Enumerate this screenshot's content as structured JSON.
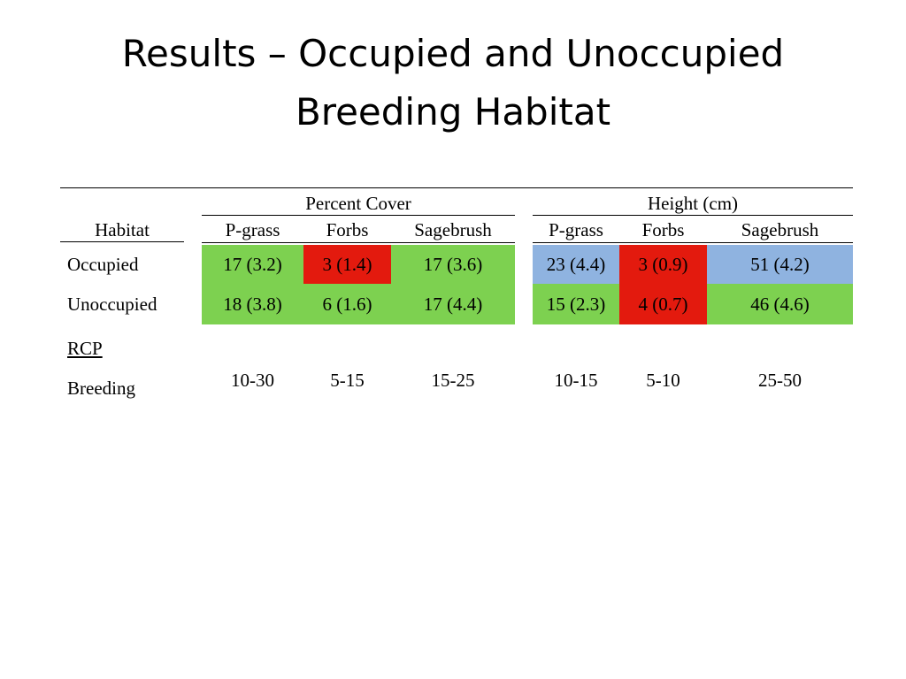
{
  "title": {
    "line1": "Results – Occupied and Unoccupied",
    "line2": "Breeding Habitat"
  },
  "table": {
    "group_headers": {
      "percent_cover": "Percent Cover",
      "height": "Height (cm)"
    },
    "column_headers": {
      "habitat": "Habitat",
      "pc_pgrass": "P-grass",
      "pc_forbs": "Forbs",
      "pc_sagebrush": "Sagebrush",
      "ht_pgrass": "P-grass",
      "ht_forbs": "Forbs",
      "ht_sagebrush": "Sagebrush"
    },
    "rows": [
      {
        "habitat": "Occupied",
        "pc_pgrass": "17 (3.2)",
        "pc_forbs": "3 (1.4)",
        "pc_sagebrush": "17 (3.6)",
        "ht_pgrass": "23 (4.4)",
        "ht_forbs": "3 (0.9)",
        "ht_sagebrush": "51 (4.2)"
      },
      {
        "habitat": "Unoccupied",
        "pc_pgrass": "18 (3.8)",
        "pc_forbs": "6 (1.6)",
        "pc_sagebrush": "17 (4.4)",
        "ht_pgrass": "15 (2.3)",
        "ht_forbs": "4 (0.7)",
        "ht_sagebrush": "46 (4.6)"
      }
    ],
    "rcp": {
      "label": "RCP",
      "sublabel": "Breeding",
      "pc_pgrass": "10-30",
      "pc_forbs": "5-15",
      "pc_sagebrush": "15-25",
      "ht_pgrass": "10-15",
      "ht_forbs": "5-10",
      "ht_sagebrush": "25-50"
    }
  },
  "colors": {
    "within_range": "#7dd150",
    "below_range": "#e31a0e",
    "above_range": "#8fb3e0"
  }
}
